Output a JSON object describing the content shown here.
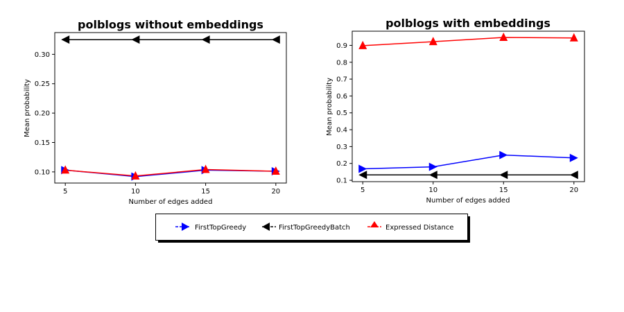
{
  "legend": {
    "placement": "bottom-center",
    "entries": [
      {
        "label": "FirstTopGreedy",
        "color": "#0000ff",
        "marker": "triangle-right"
      },
      {
        "label": "FirstTopGreedyBatch",
        "color": "#000000",
        "marker": "triangle-left"
      },
      {
        "label": "Expressed Distance",
        "color": "#ff0000",
        "marker": "triangle-up"
      }
    ]
  },
  "chart_data": [
    {
      "type": "line",
      "title": "polblogs without embeddings",
      "xlabel": "Number of edges added",
      "ylabel": "Mean probability",
      "x": [
        5,
        10,
        15,
        20
      ],
      "xticks": [
        "5",
        "10",
        "15",
        "20"
      ],
      "yticks": [
        "0.10",
        "0.15",
        "0.20",
        "0.25",
        "0.30"
      ],
      "xlim": [
        4.25,
        20.75
      ],
      "ylim": [
        0.081,
        0.337
      ],
      "grid": false,
      "series": [
        {
          "name": "FirstTopGreedy",
          "color": "#0000ff",
          "marker": "triangle-right",
          "values": [
            0.103,
            0.092,
            0.103,
            0.101
          ]
        },
        {
          "name": "FirstTopGreedyBatch",
          "color": "#000000",
          "marker": "triangle-left",
          "values": [
            0.325,
            0.325,
            0.325,
            0.325
          ]
        },
        {
          "name": "Expressed Distance",
          "color": "#ff0000",
          "marker": "triangle-up",
          "values": [
            0.103,
            0.093,
            0.104,
            0.101
          ]
        }
      ]
    },
    {
      "type": "line",
      "title": "polblogs with embeddings",
      "xlabel": "Number of edges added",
      "ylabel": "Mean probability",
      "x": [
        5,
        10,
        15,
        20
      ],
      "xticks": [
        "5",
        "10",
        "15",
        "20"
      ],
      "yticks": [
        "0.1",
        "0.2",
        "0.3",
        "0.4",
        "0.5",
        "0.6",
        "0.7",
        "0.8",
        "0.9"
      ],
      "xlim": [
        4.25,
        20.75
      ],
      "ylim": [
        0.092,
        0.984
      ],
      "grid": false,
      "series": [
        {
          "name": "FirstTopGreedy",
          "color": "#0000ff",
          "marker": "triangle-right",
          "values": [
            0.168,
            0.18,
            0.25,
            0.233
          ]
        },
        {
          "name": "FirstTopGreedyBatch",
          "color": "#000000",
          "marker": "triangle-left",
          "values": [
            0.132,
            0.132,
            0.132,
            0.132
          ]
        },
        {
          "name": "Expressed Distance",
          "color": "#ff0000",
          "marker": "triangle-up",
          "values": [
            0.898,
            0.922,
            0.947,
            0.944
          ]
        }
      ]
    }
  ]
}
